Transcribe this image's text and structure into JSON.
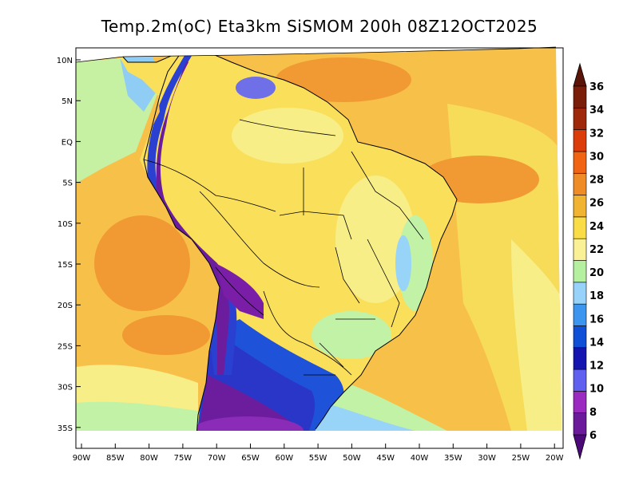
{
  "title": "Temp.2m(oC) Eta3km SiSMOM 200h 08Z12OCT2025",
  "lat_labels": [
    "10N",
    "5N",
    "EQ",
    "5S",
    "10S",
    "15S",
    "20S",
    "25S",
    "30S",
    "35S"
  ],
  "lon_labels": [
    "90W",
    "85W",
    "80W",
    "75W",
    "70W",
    "65W",
    "60W",
    "55W",
    "50W",
    "45W",
    "40W",
    "35W",
    "30W",
    "25W",
    "20W"
  ],
  "colorbar": {
    "levels": [
      "6",
      "8",
      "10",
      "12",
      "14",
      "16",
      "18",
      "20",
      "22",
      "24",
      "26",
      "28",
      "30",
      "32",
      "34",
      "36"
    ],
    "colors": [
      "#6a1a9a",
      "#9a2ac0",
      "#6060f0",
      "#1414b0",
      "#1050d8",
      "#3c96f0",
      "#96d2fa",
      "#b4f0a0",
      "#faf096",
      "#fadc46",
      "#f0b432",
      "#f08c28",
      "#f06414",
      "#dc3c0a",
      "#a0280a",
      "#7a1e0a"
    ],
    "under_color": "#4b0a78",
    "over_color": "#5a1408"
  },
  "colors": {
    "warm_ocean": "#f7c049",
    "hot_core": "#f19a34",
    "land_base": "#fadf5a",
    "mild_land": "#f8f08f",
    "cool_green": "#c2f2a6",
    "andes_blue": "#2a40d0",
    "andes_purple": "#6b1d9e",
    "south_blue": "#2a36c8",
    "light_blue": "#98d4f8",
    "coastline": "#000000"
  }
}
